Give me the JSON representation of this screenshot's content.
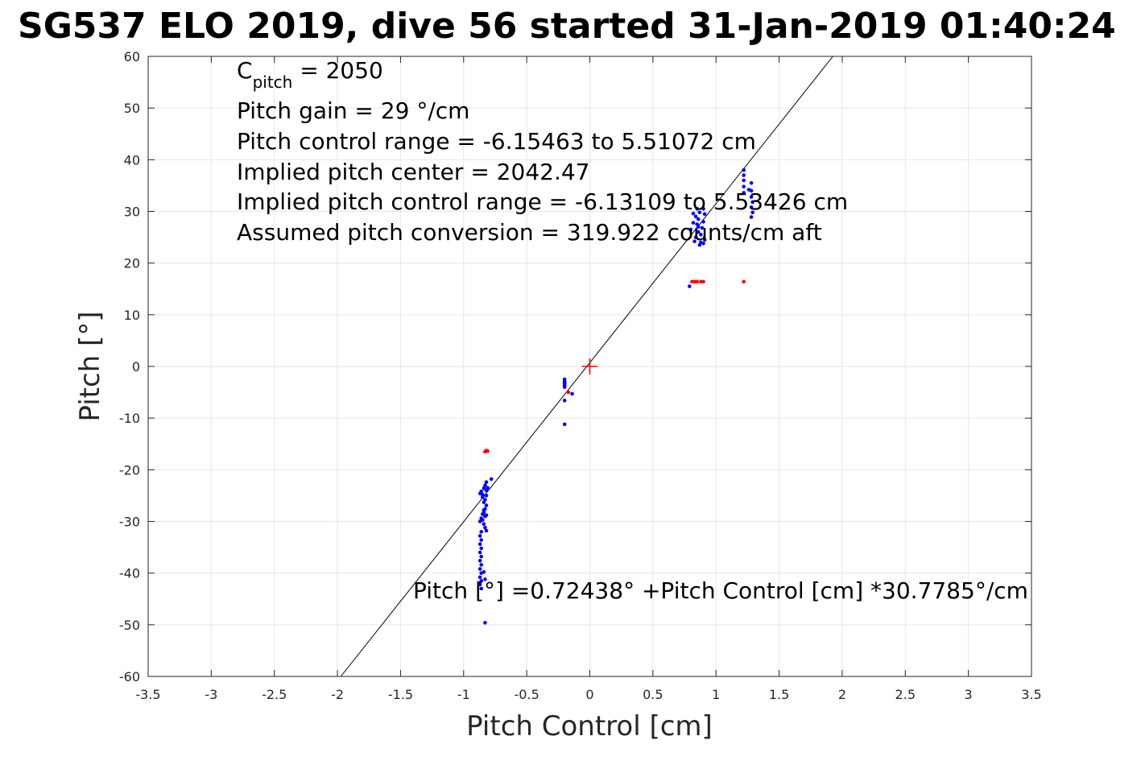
{
  "chart_data": {
    "type": "scatter",
    "title": "SG537 ELO 2019, dive 56 started 31-Jan-2019 01:40:24",
    "xlabel": "Pitch Control [cm]",
    "ylabel": "Pitch [°]",
    "xlim": [
      -3.5,
      3.5
    ],
    "ylim": [
      -60,
      60
    ],
    "xticks": [
      -3.5,
      -3,
      -2.5,
      -2,
      -1.5,
      -1,
      -0.5,
      0,
      0.5,
      1,
      1.5,
      2,
      2.5,
      3,
      3.5
    ],
    "yticks": [
      -60,
      -50,
      -40,
      -30,
      -20,
      -10,
      0,
      10,
      20,
      30,
      40,
      50,
      60
    ],
    "xtick_labels": [
      "-3.5",
      "-3",
      "-2.5",
      "-2",
      "-1.5",
      "-1",
      "-0.5",
      "0",
      "0.5",
      "1",
      "1.5",
      "2",
      "2.5",
      "3",
      "3.5"
    ],
    "ytick_labels": [
      "-60",
      "-50",
      "-40",
      "-30",
      "-20",
      "-10",
      "0",
      "10",
      "20",
      "30",
      "40",
      "50",
      "60"
    ],
    "grid": true,
    "fit_line": {
      "intercept": 0.72438,
      "slope": 30.7785
    },
    "center_marker": {
      "x": 0,
      "y": 0,
      "color": "#ff0000"
    },
    "series": [
      {
        "color": "#0000ff",
        "points": [
          [
            -0.85,
            -24.8
          ],
          [
            -0.86,
            -24.2
          ],
          [
            -0.84,
            -23.6
          ],
          [
            -0.83,
            -23.0
          ],
          [
            -0.82,
            -22.4
          ],
          [
            -0.85,
            -25.3
          ],
          [
            -0.87,
            -24.6
          ],
          [
            -0.82,
            -24.0
          ],
          [
            -0.83,
            -25.8
          ],
          [
            -0.84,
            -26.3
          ],
          [
            -0.82,
            -26.9
          ],
          [
            -0.83,
            -27.6
          ],
          [
            -0.84,
            -28.2
          ],
          [
            -0.82,
            -28.8
          ],
          [
            -0.86,
            -29.4
          ],
          [
            -0.87,
            -30.0
          ],
          [
            -0.85,
            -29.7
          ],
          [
            -0.84,
            -30.5
          ],
          [
            -0.83,
            -31.2
          ],
          [
            -0.82,
            -31.8
          ],
          [
            -0.86,
            -32.0
          ],
          [
            -0.87,
            -32.8
          ],
          [
            -0.86,
            -33.6
          ],
          [
            -0.87,
            -34.4
          ],
          [
            -0.86,
            -35.2
          ],
          [
            -0.87,
            -36.0
          ],
          [
            -0.86,
            -36.8
          ],
          [
            -0.87,
            -37.6
          ],
          [
            -0.86,
            -38.4
          ],
          [
            -0.87,
            -39.2
          ],
          [
            -0.86,
            -40.0
          ],
          [
            -0.87,
            -40.8
          ],
          [
            -0.86,
            -41.5
          ],
          [
            -0.87,
            -42.2
          ],
          [
            -0.86,
            -43.0
          ],
          [
            -0.84,
            -39.8
          ],
          [
            -0.83,
            -41.2
          ],
          [
            -0.82,
            -25.0
          ],
          [
            -0.81,
            -23.5
          ],
          [
            -0.84,
            -27.8
          ],
          [
            -0.85,
            -28.6
          ],
          [
            -0.83,
            -29.0
          ],
          [
            -0.83,
            -49.6
          ],
          [
            -0.78,
            -21.8
          ],
          [
            -0.2,
            -2.5
          ],
          [
            -0.2,
            -2.9
          ],
          [
            -0.2,
            -3.3
          ],
          [
            -0.2,
            -3.7
          ],
          [
            -0.2,
            -4.0
          ],
          [
            -0.2,
            -3.1
          ],
          [
            -0.2,
            -6.6
          ],
          [
            -0.2,
            -11.2
          ],
          [
            -0.14,
            -5.3
          ],
          [
            0.8,
            26.5
          ],
          [
            0.82,
            27.8
          ],
          [
            0.84,
            29.0
          ],
          [
            0.85,
            30.5
          ],
          [
            0.86,
            28.5
          ],
          [
            0.86,
            27.0
          ],
          [
            0.88,
            25.5
          ],
          [
            0.89,
            26.8
          ],
          [
            0.9,
            28.0
          ],
          [
            0.91,
            29.5
          ],
          [
            0.9,
            30.5
          ],
          [
            0.88,
            24.0
          ],
          [
            0.84,
            25.0
          ],
          [
            0.86,
            26.0
          ],
          [
            0.83,
            24.2
          ],
          [
            0.87,
            23.5
          ],
          [
            0.91,
            24.5
          ],
          [
            0.9,
            23.8
          ],
          [
            0.85,
            27.5
          ],
          [
            0.87,
            29.8
          ],
          [
            0.82,
            29.6
          ],
          [
            0.79,
            15.5
          ],
          [
            1.22,
            38.0
          ],
          [
            1.22,
            37.0
          ],
          [
            1.22,
            36.0
          ],
          [
            1.22,
            34.8
          ],
          [
            1.22,
            33.6
          ],
          [
            1.26,
            34.2
          ],
          [
            1.28,
            35.5
          ],
          [
            1.28,
            34.0
          ],
          [
            1.28,
            32.8
          ],
          [
            1.29,
            31.8
          ],
          [
            1.28,
            30.8
          ],
          [
            1.29,
            29.8
          ],
          [
            1.28,
            28.9
          ]
        ]
      },
      {
        "color": "#ff0000",
        "points": [
          [
            -0.82,
            -16.3
          ],
          [
            -0.83,
            -16.5
          ],
          [
            -0.81,
            -16.4
          ],
          [
            -0.17,
            -5.0
          ],
          [
            0.81,
            16.4
          ],
          [
            0.83,
            16.4
          ],
          [
            0.85,
            16.4
          ],
          [
            0.88,
            16.4
          ],
          [
            0.9,
            16.4
          ],
          [
            1.22,
            16.4
          ]
        ]
      }
    ]
  },
  "annotations": {
    "c_pitch_symbol": "C",
    "c_pitch_subscript": "pitch",
    "c_pitch_value": " = 2050",
    "pitch_gain": "Pitch gain = 29 °/cm",
    "control_range": "Pitch control range = -6.15463 to 5.51072 cm",
    "implied_center": "Implied pitch center = 2042.47",
    "implied_range": "Implied pitch control range = -6.13109 to 5.53426 cm",
    "conversion": "Assumed pitch conversion = 319.922 counts/cm aft",
    "fit_equation": "Pitch [°] =0.72438° +Pitch Control [cm] *30.7785°/cm"
  }
}
